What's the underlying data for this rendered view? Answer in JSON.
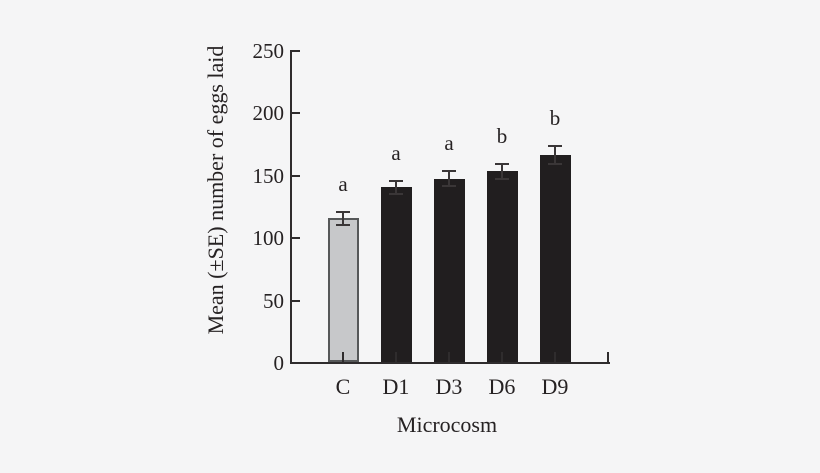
{
  "figure": {
    "background": "#f5f5f6",
    "axis_color": "#2f2c2d",
    "error_bar_color": "#3a3637"
  },
  "chart_data": {
    "type": "bar",
    "title": "",
    "xlabel": "Microcosm",
    "ylabel": "Mean (±SE) number of eggs laid",
    "categories": [
      "C",
      "D1",
      "D3",
      "D6",
      "D9"
    ],
    "values": [
      115,
      140,
      147,
      153,
      166
    ],
    "errors": [
      5,
      5,
      6,
      6,
      7
    ],
    "sig_letters": [
      "a",
      "a",
      "a",
      "b",
      "b"
    ],
    "bar_colors": [
      "#c7c8ca",
      "#211e1f",
      "#211e1f",
      "#211e1f",
      "#211e1f"
    ],
    "bar_border_colors": [
      "#565859",
      "#211e1f",
      "#211e1f",
      "#211e1f",
      "#211e1f"
    ],
    "ylim": [
      0,
      250
    ],
    "yticks": [
      0,
      50,
      100,
      150,
      200,
      250
    ],
    "grid": false,
    "legend": null
  }
}
